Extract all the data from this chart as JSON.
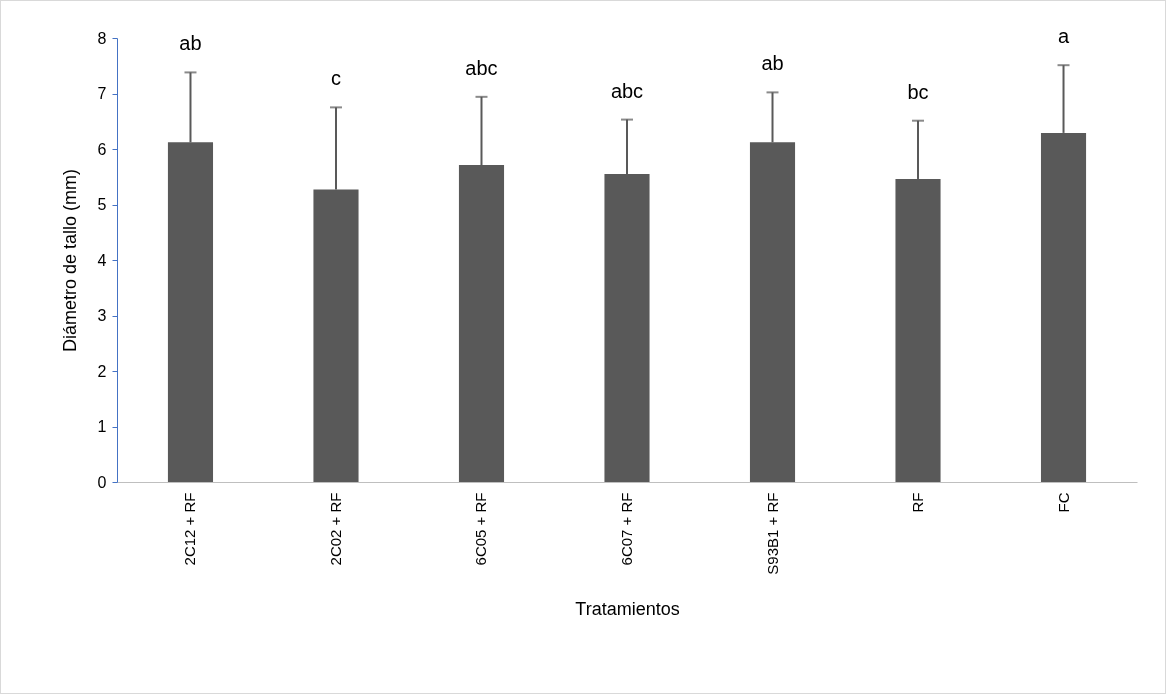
{
  "chart_data": {
    "type": "bar",
    "xlabel": "Tratamientos",
    "ylabel": "Diámetro de tallo (mm)",
    "categories": [
      "2C12 + RF",
      "2C02 + RF",
      "6C05 + RF",
      "6C07 + RF",
      "S93B1 + RF",
      "RF",
      "FC"
    ],
    "values": [
      6.12,
      5.27,
      5.71,
      5.55,
      6.12,
      5.46,
      6.29
    ],
    "errors": [
      [
        6.12,
        7.38
      ],
      [
        5.27,
        6.75
      ],
      [
        5.71,
        6.94
      ],
      [
        5.55,
        6.53
      ],
      [
        6.12,
        7.02
      ],
      [
        5.46,
        6.51
      ],
      [
        6.29,
        7.51
      ]
    ],
    "color": "#595959",
    "ylim": [
      0,
      8
    ],
    "yticks": [
      0,
      1,
      2,
      3,
      4,
      5,
      6,
      7,
      8
    ],
    "grid": false,
    "annotations": [
      {
        "text": "ab",
        "x": "2C12 + RF",
        "y": 7.38
      },
      {
        "text": "c",
        "x": "2C02 + RF",
        "y": 6.75
      },
      {
        "text": "abc",
        "x": "6C05 + RF",
        "y": 6.94
      },
      {
        "text": "abc",
        "x": "6C07 + RF",
        "y": 6.53
      },
      {
        "text": "ab",
        "x": "S93B1 + RF",
        "y": 7.02
      },
      {
        "text": "bc",
        "x": "RF",
        "y": 6.51
      },
      {
        "text": "a",
        "x": "FC",
        "y": 7.51
      }
    ]
  }
}
